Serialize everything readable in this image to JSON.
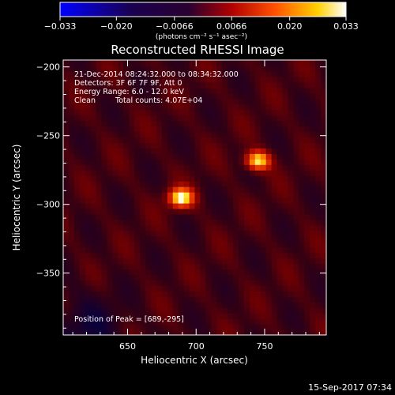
{
  "chart_data": {
    "type": "heatmap",
    "title": "Reconstructed RHESSI Image",
    "xlabel": "Heliocentric X (arcsec)",
    "ylabel": "Heliocentric Y (arcsec)",
    "x_range": [
      603,
      795
    ],
    "y_range": [
      -395,
      -195
    ],
    "x_ticks": [
      650,
      700,
      750
    ],
    "y_ticks": [
      -200,
      -250,
      -300,
      -350
    ],
    "colorbar": {
      "label": "(photons cm⁻² s⁻¹ asec⁻²)",
      "range": [
        -0.033,
        0.033
      ],
      "ticks": [
        "−0.033",
        "−0.020",
        "−0.0066",
        "0.0066",
        "0.020",
        "0.033"
      ],
      "colors": [
        "#0000ff",
        "#000000",
        "#ff0000",
        "#ffff00",
        "#ffffff"
      ]
    },
    "sources": [
      {
        "x": 689,
        "y": -295,
        "peak": 0.033
      },
      {
        "x": 745,
        "y": -268,
        "peak": 0.03
      }
    ],
    "annotations": {
      "time_range": "21-Dec-2014 08:24:32.000 to 08:34:32.000",
      "detectors": "Detectors: 3F 6F 7F 9F, Att 0",
      "energy": "Energy Range: 6.0 - 12.0 keV",
      "method": "Clean",
      "counts": "Total counts: 4.07E+04",
      "peak_position": "Position of Peak = [689,-295]"
    },
    "footer_timestamp": "15-Sep-2017 07:34"
  }
}
